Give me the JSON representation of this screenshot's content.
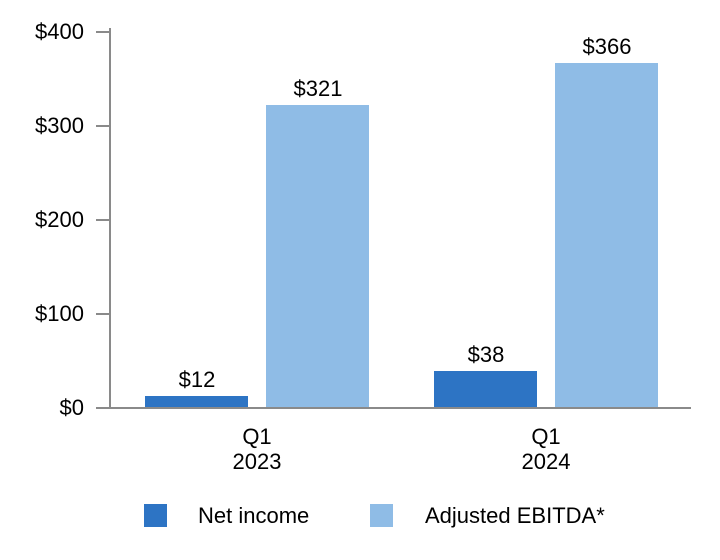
{
  "chart_data": {
    "type": "bar",
    "title": "",
    "xlabel": "",
    "ylabel": "",
    "categories": [
      "Q1 2023",
      "Q1 2024"
    ],
    "category_lines": [
      [
        "Q1",
        "2023"
      ],
      [
        "Q1",
        "2024"
      ]
    ],
    "series": [
      {
        "name": "Net income",
        "values": [
          12,
          38
        ],
        "labels": [
          "$12",
          "$38"
        ],
        "color": "#2D74C4"
      },
      {
        "name": "Adjusted EBITDA*",
        "values": [
          321,
          366
        ],
        "labels": [
          "$321",
          "$366"
        ],
        "color": "#8FBCE6"
      }
    ],
    "y_axis": {
      "range": [
        0,
        400
      ],
      "ticks": [
        0,
        100,
        200,
        300,
        400
      ],
      "tick_labels": [
        "$0",
        "$100",
        "$200",
        "$300",
        "$400"
      ]
    },
    "legend": {
      "position": "bottom",
      "items": [
        "Net income",
        "Adjusted EBITDA*"
      ]
    },
    "grid": false
  },
  "colors": {
    "net_income": "#2D74C4",
    "adjusted_ebitda": "#8FBCE6",
    "axis": "#8A8A8A",
    "text": "#000000",
    "background": "#FFFFFF"
  }
}
